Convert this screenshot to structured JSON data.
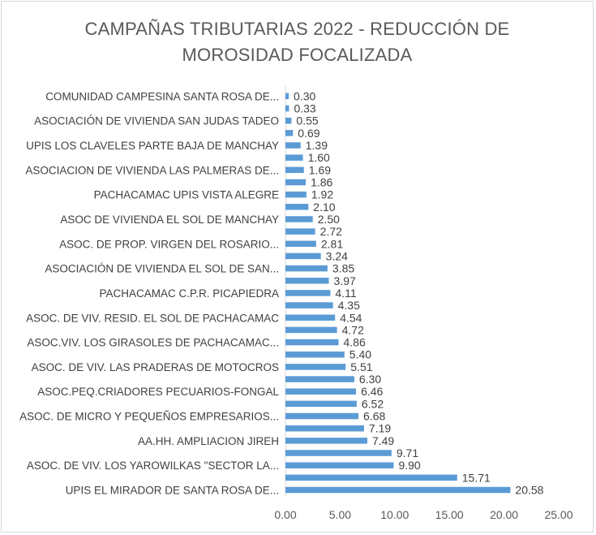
{
  "chart_data": {
    "type": "bar",
    "orientation": "horizontal",
    "title_lines": [
      "CAMPAÑAS TRIBUTARIAS 2022 - REDUCCIÓN DE",
      "MOROSIDAD FOCALIZADA"
    ],
    "xlim": [
      0,
      25
    ],
    "x_ticks": [
      "0.00",
      "5.00",
      "10.00",
      "15.00",
      "20.00",
      "25.00"
    ],
    "grid": false,
    "bar_color": "#5b9bd5",
    "categories": [
      "UPIS EL MIRADOR DE SANTA ROSA DE...",
      "",
      "ASOC. DE VIV. LOS YAROWILKAS \"SECTOR LA...",
      "",
      "AA.HH. AMPLIACION JIREH",
      "",
      "ASOC. DE MICRO Y PEQUEÑOS EMPRESARIOS...",
      "",
      "ASOC.PEQ.CRIADORES PECUARIOS-FONGAL",
      "",
      "ASOC. DE VIV. LAS PRADERAS DE MOTOCROS",
      "",
      "ASOC.VIV. LOS GIRASOLES DE PACHACAMAC...",
      "",
      "ASOC. DE VIV. RESID. EL SOL DE PACHACAMAC",
      "",
      "PACHACAMAC  C.P.R. PICAPIEDRA",
      "",
      "ASOCIACIÓN DE VIVIENDA EL SOL DE SAN...",
      "",
      "ASOC. DE PROP. VIRGEN DEL ROSARIO...",
      "",
      "ASOC DE VIVIENDA EL SOL DE MANCHAY",
      "",
      "PACHACAMAC  UPIS VISTA ALEGRE",
      "",
      "ASOCIACION DE VIVIENDA LAS PALMERAS DE...",
      "",
      "UPIS LOS CLAVELES PARTE BAJA DE MANCHAY",
      "",
      "ASOCIACIÓN DE VIVIENDA SAN JUDAS TADEO",
      "",
      "COMUNIDAD CAMPESINA SANTA ROSA DE..."
    ],
    "values": [
      20.58,
      15.71,
      9.9,
      9.71,
      7.49,
      7.19,
      6.68,
      6.52,
      6.46,
      6.3,
      5.51,
      5.4,
      4.86,
      4.72,
      4.54,
      4.35,
      4.11,
      3.97,
      3.85,
      3.24,
      2.81,
      2.72,
      2.5,
      2.1,
      1.92,
      1.86,
      1.69,
      1.6,
      1.39,
      0.69,
      0.55,
      0.33,
      0.3
    ],
    "value_labels": [
      "20.58",
      "15.71",
      "9.90",
      "9.71",
      "7.49",
      "7.19",
      "6.68",
      "6.52",
      "6.46",
      "6.30",
      "5.51",
      "5.40",
      "4.86",
      "4.72",
      "4.54",
      "4.35",
      "4.11",
      "3.97",
      "3.85",
      "3.24",
      "2.81",
      "2.72",
      "2.50",
      "2.10",
      "1.92",
      "1.86",
      "1.69",
      "1.60",
      "1.39",
      "0.69",
      "0.55",
      "0.33",
      "0.30"
    ]
  }
}
